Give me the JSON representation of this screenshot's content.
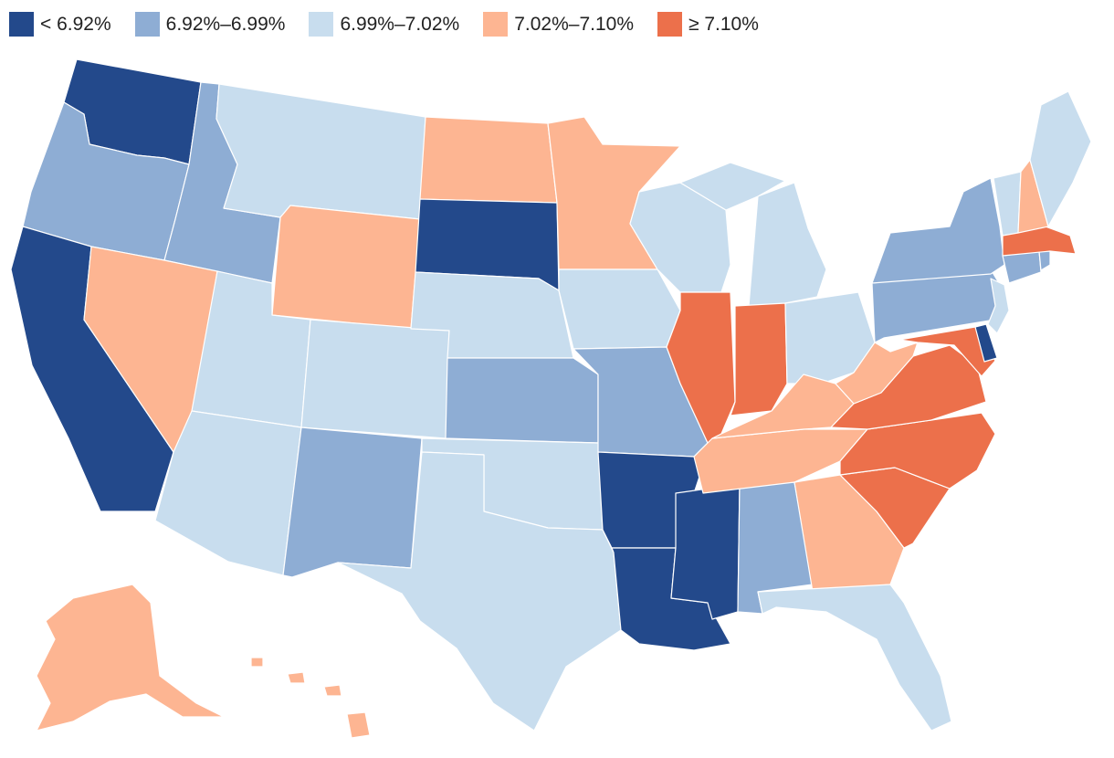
{
  "legend": {
    "items": [
      {
        "label": "< 6.92%",
        "color": "#23498b"
      },
      {
        "label": "6.92%–6.99%",
        "color": "#8eadd4"
      },
      {
        "label": "6.99%–7.02%",
        "color": "#c8ddee"
      },
      {
        "label": "7.02%–7.10%",
        "color": "#fdb592"
      },
      {
        "label": "≥ 7.10%",
        "color": "#ec704b"
      }
    ]
  },
  "states": {
    "WA": {
      "bucket": 0
    },
    "CA": {
      "bucket": 0
    },
    "SD": {
      "bucket": 0
    },
    "AR": {
      "bucket": 0
    },
    "LA": {
      "bucket": 0
    },
    "MS": {
      "bucket": 0
    },
    "DE": {
      "bucket": 0
    },
    "OR": {
      "bucket": 1
    },
    "ID": {
      "bucket": 1
    },
    "KS": {
      "bucket": 1
    },
    "MO": {
      "bucket": 1
    },
    "NM": {
      "bucket": 1
    },
    "AL": {
      "bucket": 1
    },
    "NY": {
      "bucket": 1
    },
    "PA": {
      "bucket": 1
    },
    "CT": {
      "bucket": 1
    },
    "RI": {
      "bucket": 1
    },
    "MT": {
      "bucket": 2
    },
    "UT": {
      "bucket": 2
    },
    "CO": {
      "bucket": 2
    },
    "AZ": {
      "bucket": 2
    },
    "NE": {
      "bucket": 2
    },
    "OK": {
      "bucket": 2
    },
    "TX": {
      "bucket": 2
    },
    "IA": {
      "bucket": 2
    },
    "WI": {
      "bucket": 2
    },
    "MI": {
      "bucket": 2
    },
    "OH": {
      "bucket": 2
    },
    "FL": {
      "bucket": 2
    },
    "ME": {
      "bucket": 2
    },
    "VT": {
      "bucket": 2
    },
    "NJ": {
      "bucket": 2
    },
    "ND": {
      "bucket": 3
    },
    "WY": {
      "bucket": 3
    },
    "NV": {
      "bucket": 3
    },
    "MN": {
      "bucket": 3
    },
    "KY": {
      "bucket": 3
    },
    "WV": {
      "bucket": 3
    },
    "TN": {
      "bucket": 3
    },
    "GA": {
      "bucket": 3
    },
    "NH": {
      "bucket": 3
    },
    "AK": {
      "bucket": 3
    },
    "HI": {
      "bucket": 3
    },
    "IL": {
      "bucket": 4
    },
    "IN": {
      "bucket": 4
    },
    "VA": {
      "bucket": 4
    },
    "NC": {
      "bucket": 4
    },
    "SC": {
      "bucket": 4
    },
    "MD": {
      "bucket": 4
    },
    "MA": {
      "bucket": 4
    }
  }
}
